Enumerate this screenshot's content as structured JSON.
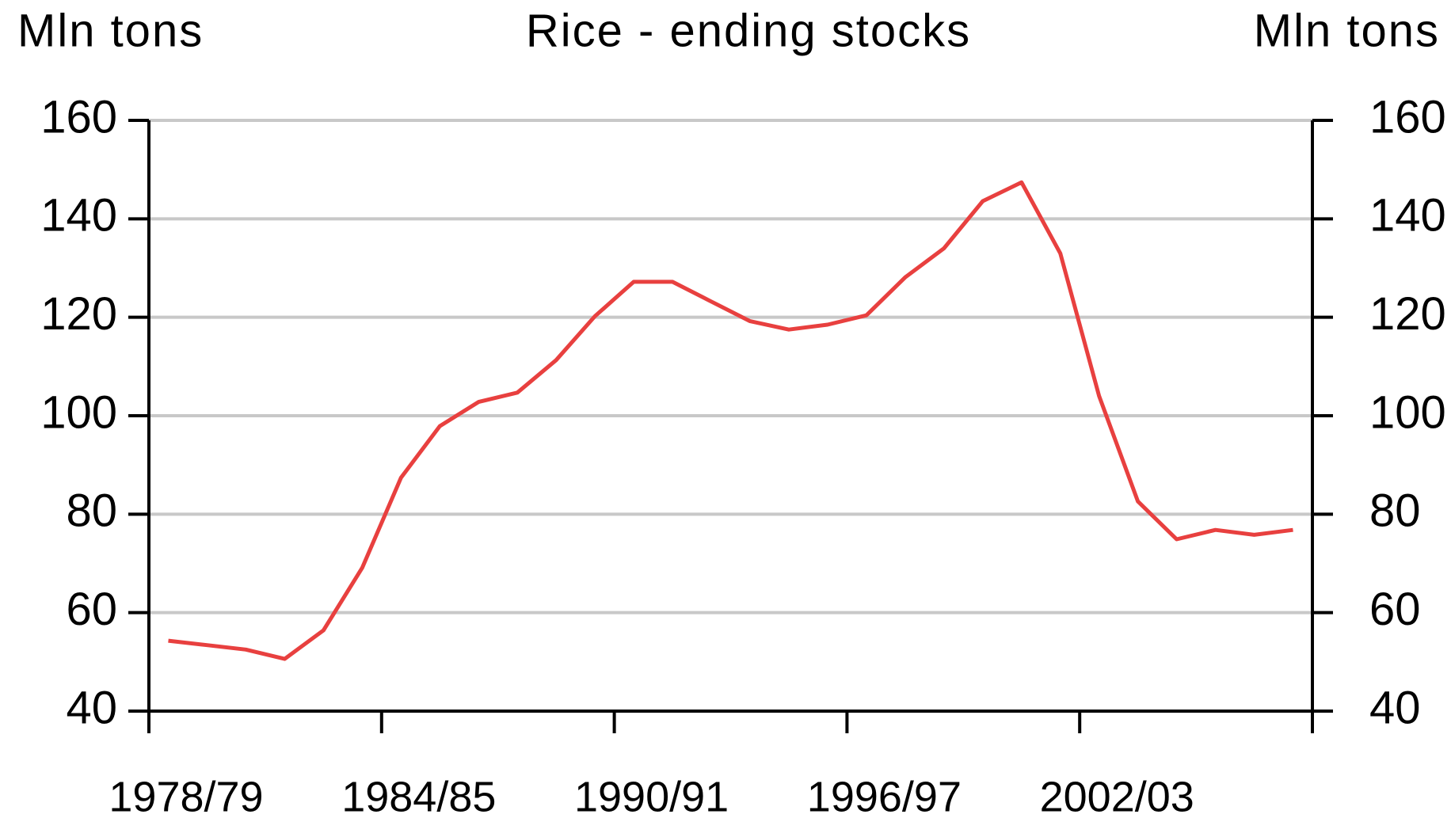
{
  "chart_data": {
    "type": "line",
    "title": "Rice - ending stocks",
    "y_label": "Mln tons",
    "y2_label": "Mln tons",
    "categories": [
      "1978/79",
      null,
      null,
      null,
      null,
      null,
      "1984/85",
      null,
      null,
      null,
      null,
      null,
      "1990/91",
      null,
      null,
      null,
      null,
      null,
      "1996/97",
      null,
      null,
      null,
      null,
      null,
      "2002/03",
      null,
      null,
      null,
      null,
      null
    ],
    "series": [
      {
        "name": "Rice ending stocks",
        "color": "#e8403f",
        "values": [
          54.3,
          53.4,
          52.5,
          50.6,
          56.4,
          69.1,
          87.4,
          97.9,
          102.8,
          104.7,
          111.3,
          120.2,
          127.2,
          127.2,
          123.2,
          119.2,
          117.5,
          118.5,
          120.4,
          128.1,
          134.0,
          143.6,
          147.4,
          133.0,
          104.0,
          82.6,
          74.9,
          76.8,
          75.8,
          76.8
        ]
      }
    ],
    "ylim": [
      40,
      160
    ],
    "yticks": [
      40,
      60,
      80,
      100,
      120,
      140,
      160
    ],
    "y2lim": [
      40,
      160
    ],
    "y2ticks": [
      40,
      60,
      80,
      100,
      120,
      140,
      160
    ],
    "grid": true
  }
}
